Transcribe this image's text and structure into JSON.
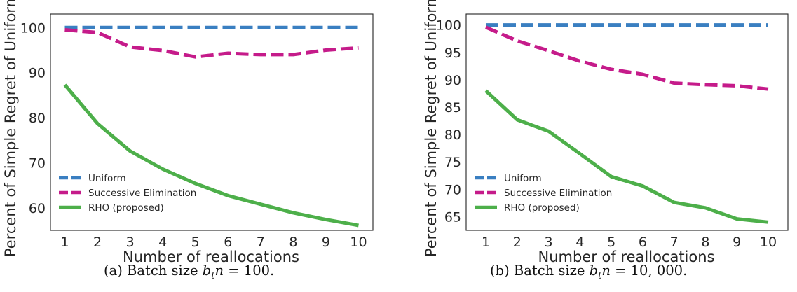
{
  "chart_data": [
    {
      "type": "line",
      "x": [
        1,
        2,
        3,
        4,
        5,
        6,
        7,
        8,
        9,
        10
      ],
      "xlabel": "Number of reallocations",
      "ylabel": "Percent of Simple Regret of Uniform",
      "ylim": [
        55,
        103
      ],
      "yticks": [
        60,
        70,
        80,
        90,
        100
      ],
      "xticks": [
        1,
        2,
        3,
        4,
        5,
        6,
        7,
        8,
        9,
        10
      ],
      "legend_position": "lower-left",
      "grid": false,
      "series": [
        {
          "name": "Uniform",
          "color": "#3a7fc1",
          "style": "dashed",
          "values": [
            100,
            100,
            100,
            100,
            100,
            100,
            100,
            100,
            100,
            100
          ]
        },
        {
          "name": "Successive Elimination",
          "color": "#c51b8a",
          "style": "dashed",
          "values": [
            99.5,
            98.9,
            95.7,
            94.9,
            93.5,
            94.3,
            94.0,
            94.0,
            95.0,
            95.5
          ]
        },
        {
          "name": "RHO (proposed)",
          "color": "#4daf4a",
          "style": "solid",
          "values": [
            87.3,
            78.7,
            72.6,
            68.6,
            65.4,
            62.7,
            60.8,
            58.9,
            57.4,
            56.1
          ]
        }
      ],
      "caption": "(a) Batch size b_t n = 100.",
      "caption_parts": {
        "prefix": "(a) Batch size ",
        "var": "b",
        "sub": "t",
        "var2": "n",
        "suffix": " = 100."
      }
    },
    {
      "type": "line",
      "x": [
        1,
        2,
        3,
        4,
        5,
        6,
        7,
        8,
        9,
        10
      ],
      "xlabel": "Number of reallocations",
      "ylabel": "Percent of Simple Regret of Uniform",
      "ylim": [
        62.5,
        102
      ],
      "yticks": [
        65,
        70,
        75,
        80,
        85,
        90,
        95,
        100
      ],
      "xticks": [
        1,
        2,
        3,
        4,
        5,
        6,
        7,
        8,
        9,
        10
      ],
      "legend_position": "lower-left",
      "grid": false,
      "series": [
        {
          "name": "Uniform",
          "color": "#3a7fc1",
          "style": "dashed",
          "values": [
            100,
            100,
            100,
            100,
            100,
            100,
            100,
            100,
            100,
            100
          ]
        },
        {
          "name": "Successive Elimination",
          "color": "#c51b8a",
          "style": "dashed",
          "values": [
            99.6,
            97.1,
            95.3,
            93.4,
            91.9,
            91.0,
            89.4,
            89.1,
            88.9,
            88.3
          ]
        },
        {
          "name": "RHO (proposed)",
          "color": "#4daf4a",
          "style": "solid",
          "values": [
            88.0,
            82.7,
            80.6,
            76.5,
            72.3,
            70.6,
            67.6,
            66.6,
            64.6,
            64.0
          ]
        }
      ],
      "caption": "(b) Batch size b_t n = 10,000.",
      "caption_parts": {
        "prefix": "(b) Batch size ",
        "var": "b",
        "sub": "t",
        "var2": "n",
        "suffix": " = 10, 000."
      }
    }
  ]
}
